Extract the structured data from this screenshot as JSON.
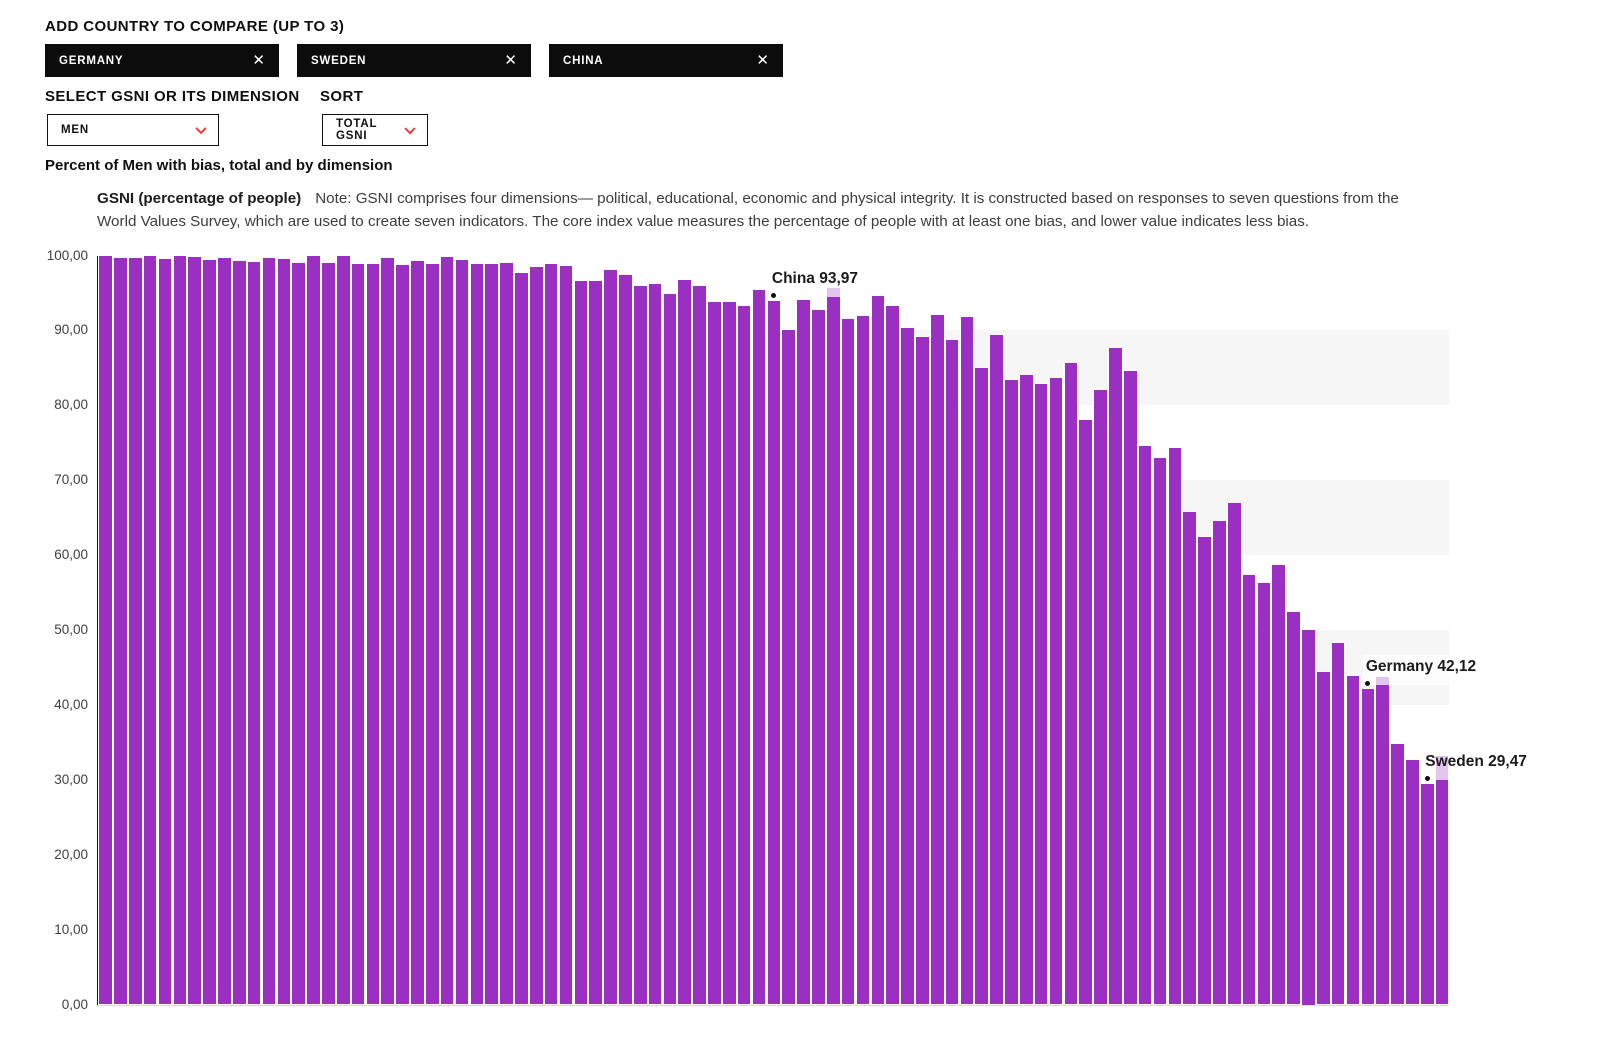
{
  "controls": {
    "add_country_label": "ADD COUNTRY TO COMPARE (UP TO 3)",
    "chips": [
      {
        "label": "GERMANY"
      },
      {
        "label": "SWEDEN"
      },
      {
        "label": "CHINA"
      }
    ],
    "remove_icon": "✕",
    "select_dimension_label": "SELECT GSNI OR ITS DIMENSION",
    "sort_label": "SORT",
    "dimension_dropdown": {
      "value": "MEN"
    },
    "sort_dropdown": {
      "value": "TOTAL GSNI"
    }
  },
  "chart_title": "Percent of Men with bias, total and by dimension",
  "note": {
    "lead": "GSNI (percentage of people)",
    "line1": "Note: GSNI comprises four dimensions— political, educational, economic and physical integrity. It is constructed based on responses to seven questions from the",
    "line2": "World Values Survey, which are used to create seven indicators. The core index value measures the percentage of people with at least one bias, and lower value indicates less bias."
  },
  "chart_data": {
    "type": "bar",
    "title": "Percent of Men with bias, total and by dimension",
    "ylabel": "GSNI (percentage of people)",
    "ylim": [
      0,
      100
    ],
    "ytick_step": 10,
    "ytick_labels": [
      "0,00",
      "10,00",
      "20,00",
      "30,00",
      "40,00",
      "50,00",
      "60,00",
      "70,00",
      "80,00",
      "90,00",
      "100,00"
    ],
    "grid_bands": [
      [
        80,
        90
      ],
      [
        60,
        70
      ],
      [
        40,
        50
      ]
    ],
    "legend": "none",
    "bar_color": "#9b2fc1",
    "band_color": "#f6f6f7",
    "values": [
      99.9,
      99.7,
      99.7,
      99.9,
      99.5,
      99.9,
      99.8,
      99.4,
      99.7,
      99.2,
      99.1,
      99.6,
      99.5,
      99.0,
      99.9,
      99.0,
      99.9,
      98.8,
      98.9,
      99.7,
      98.7,
      99.3,
      98.8,
      99.8,
      99.4,
      98.8,
      98.8,
      99.0,
      97.6,
      98.4,
      98.9,
      98.6,
      96.6,
      96.6,
      98.1,
      97.4,
      95.9,
      96.2,
      94.8,
      96.7,
      95.9,
      93.8,
      93.8,
      93.2,
      95.4,
      93.97,
      90.0,
      94.0,
      92.7,
      95.6,
      91.5,
      91.9,
      94.6,
      93.2,
      90.3,
      89.1,
      92.1,
      88.7,
      91.8,
      85.0,
      89.4,
      83.4,
      84.0,
      82.8,
      83.7,
      85.6,
      78.0,
      82.1,
      87.6,
      84.6,
      74.5,
      72.9,
      74.3,
      65.7,
      62.4,
      64.5,
      67.0,
      57.3,
      56.3,
      58.7,
      52.4,
      50.0,
      44.4,
      48.2,
      43.8,
      42.12,
      43.7,
      34.8,
      32.7,
      29.47,
      33.2
    ],
    "annotations": [
      {
        "index": 45,
        "country": "China",
        "value": 93.97,
        "display": "China 93,97"
      },
      {
        "index": 85,
        "country": "Germany",
        "value": 42.12,
        "display": "Germany 42,12"
      },
      {
        "index": 89,
        "country": "Sweden",
        "value": 29.47,
        "display": "Sweden 29,47"
      }
    ]
  }
}
